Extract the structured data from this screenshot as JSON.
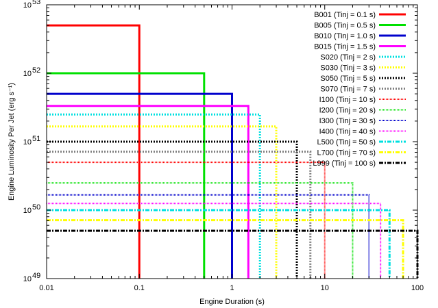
{
  "chart_data": {
    "type": "line",
    "xlabel": "Engine Duration (s)",
    "ylabel": "Engine Luminosity Per Jet (erg s⁻¹)",
    "xscale": "log",
    "yscale": "log",
    "xlim": [
      0.01,
      100
    ],
    "ylim": [
      1e+49,
      1e+53
    ],
    "grid": false,
    "legend_position": "top-right",
    "x_ticks": [
      {
        "value": 0.01,
        "label": "0.01"
      },
      {
        "value": 0.1,
        "label": "0.1"
      },
      {
        "value": 1,
        "label": "1"
      },
      {
        "value": 10,
        "label": "10"
      },
      {
        "value": 100,
        "label": "100"
      }
    ],
    "y_ticks": [
      {
        "value": 1e+49,
        "base": "10",
        "exp": "49"
      },
      {
        "value": 1e+50,
        "base": "10",
        "exp": "50"
      },
      {
        "value": 1e+51,
        "base": "10",
        "exp": "51"
      },
      {
        "value": 1e+52,
        "base": "10",
        "exp": "52"
      },
      {
        "value": 1e+53,
        "base": "10",
        "exp": "53"
      }
    ],
    "series": [
      {
        "name": "B001 (Tinj = 0.1 s)",
        "duration": 0.1,
        "luminosity": 5e+52,
        "color": "#ff0000",
        "dash": "solid"
      },
      {
        "name": "B005 (Tinj = 0.5 s)",
        "duration": 0.5,
        "luminosity": 1e+52,
        "color": "#00e000",
        "dash": "solid"
      },
      {
        "name": "B010 (Tinj = 1.0 s)",
        "duration": 1.0,
        "luminosity": 5e+51,
        "color": "#0000cc",
        "dash": "solid"
      },
      {
        "name": "B015 (Tinj = 1.5 s)",
        "duration": 1.5,
        "luminosity": 3.33e+51,
        "color": "#ff00ff",
        "dash": "solid"
      },
      {
        "name": "S020 (Tinj =  2 s)",
        "duration": 2,
        "luminosity": 2.5e+51,
        "color": "#00e0e0",
        "dash": "dotted"
      },
      {
        "name": "S030 (Tinj =  3 s)",
        "duration": 3,
        "luminosity": 1.67e+51,
        "color": "#ffff00",
        "dash": "dotted"
      },
      {
        "name": "S050 (Tinj =  5 s)",
        "duration": 5,
        "luminosity": 1e+51,
        "color": "#000000",
        "dash": "dotted"
      },
      {
        "name": "S070 (Tinj =  7 s)",
        "duration": 7,
        "luminosity": 7.14e+50,
        "color": "#808080",
        "dash": "dotted"
      },
      {
        "name": "I100 (Tinj =  10 s)",
        "duration": 10,
        "luminosity": 5e+50,
        "color": "#ff0000",
        "dash": "finedot"
      },
      {
        "name": "I200 (Tinj =  20 s)",
        "duration": 20,
        "luminosity": 2.5e+50,
        "color": "#00e000",
        "dash": "finedot"
      },
      {
        "name": "I300 (Tinj =  30 s)",
        "duration": 30,
        "luminosity": 1.67e+50,
        "color": "#0000cc",
        "dash": "finedot"
      },
      {
        "name": "I400 (Tinj =  40 s)",
        "duration": 40,
        "luminosity": 1.25e+50,
        "color": "#ff00ff",
        "dash": "finedot"
      },
      {
        "name": "L500 (Tinj =  50 s)",
        "duration": 50,
        "luminosity": 1e+50,
        "color": "#00e0e0",
        "dash": "dashdot"
      },
      {
        "name": "L700 (Tinj =  70 s)",
        "duration": 70,
        "luminosity": 7.14e+49,
        "color": "#ffff00",
        "dash": "dashdot"
      },
      {
        "name": "L999 (Tinj = 100 s)",
        "duration": 100,
        "luminosity": 5e+49,
        "color": "#000000",
        "dash": "dashdot"
      }
    ]
  }
}
